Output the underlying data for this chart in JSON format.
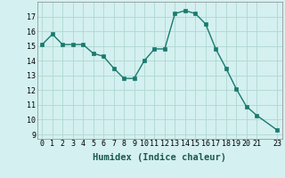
{
  "x": [
    0,
    1,
    2,
    3,
    4,
    5,
    6,
    7,
    8,
    9,
    10,
    11,
    12,
    13,
    14,
    15,
    16,
    17,
    18,
    19,
    20,
    21,
    23
  ],
  "y": [
    15.1,
    15.8,
    15.1,
    15.1,
    15.1,
    14.5,
    14.3,
    13.5,
    12.8,
    12.8,
    14.0,
    14.8,
    14.8,
    17.2,
    17.4,
    17.2,
    16.5,
    14.8,
    13.5,
    12.1,
    10.9,
    10.3,
    9.3
  ],
  "xlim": [
    -0.5,
    23.5
  ],
  "ylim": [
    8.7,
    18.0
  ],
  "yticks": [
    9,
    10,
    11,
    12,
    13,
    14,
    15,
    16,
    17
  ],
  "xticks": [
    0,
    1,
    2,
    3,
    4,
    5,
    6,
    7,
    8,
    9,
    10,
    11,
    12,
    13,
    14,
    15,
    16,
    17,
    18,
    19,
    20,
    21,
    23
  ],
  "xlabel": "Humidex (Indice chaleur)",
  "line_color": "#1a7a6e",
  "marker_color": "#1a7a6e",
  "bg_color": "#d4f0f0",
  "grid_color": "#aed8d0",
  "tick_fontsize": 6.0,
  "xlabel_fontsize": 7.5
}
